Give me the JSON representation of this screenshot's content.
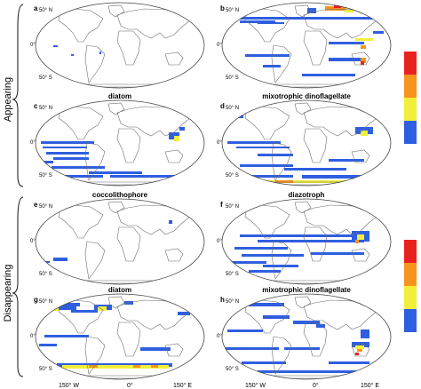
{
  "section_labels": {
    "appearing": "Appearing",
    "disappearing": "Disappearing"
  },
  "panel_letters": [
    "a",
    "b",
    "c",
    "d",
    "e",
    "f",
    "g",
    "h"
  ],
  "panel_titles": {
    "a": "",
    "b": "",
    "c": "diatom",
    "d": "mixotrophic dinoflagellate",
    "e": "coccolithophore",
    "f": "diazotroph",
    "g": "diatom",
    "h": "mixotrophic dinoflagellate"
  },
  "lat_ticks": [
    "50° N",
    "0°",
    "50° S"
  ],
  "lon_ticks": [
    "150° W",
    "0°",
    "150° E"
  ],
  "colors": {
    "level1": "#2f5fe0",
    "level2": "#f1ef3a",
    "level3": "#f7941d",
    "level4": "#e8231f",
    "land_outline": "#6e6e6e"
  }
}
